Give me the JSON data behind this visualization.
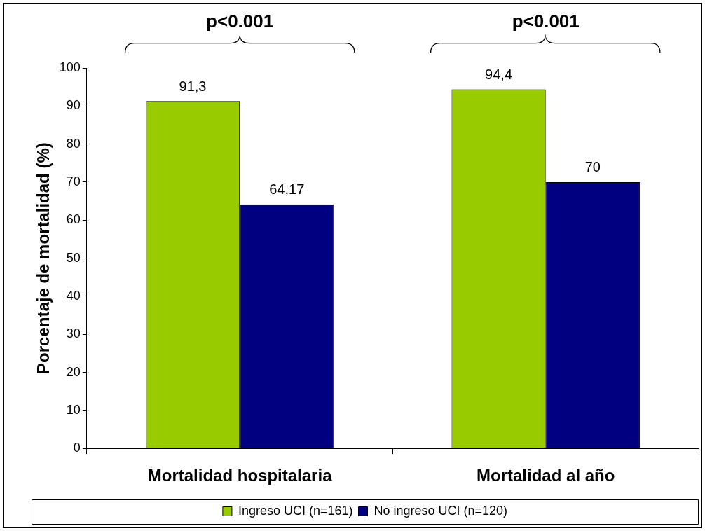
{
  "chart_data": {
    "type": "bar",
    "ylabel": "Porcentaje de mortalidad (%)",
    "categories": [
      "Mortalidad hospitalaria",
      "Mortalidad al año"
    ],
    "series": [
      {
        "name": "Ingreso UCI (n=161)",
        "color": "#99cc00",
        "values": [
          91.3,
          94.4
        ],
        "value_labels": [
          "91,3",
          "94,4"
        ]
      },
      {
        "name": "No ingreso UCI (n=120)",
        "color": "#000080",
        "values": [
          64.17,
          70
        ],
        "value_labels": [
          "64,17",
          "70"
        ]
      }
    ],
    "ylim": [
      0,
      100
    ],
    "yticks": [
      0,
      10,
      20,
      30,
      40,
      50,
      60,
      70,
      80,
      90,
      100
    ],
    "grid": false,
    "legend": "bottom",
    "annotations": [
      "p<0.001",
      "p<0.001"
    ]
  }
}
